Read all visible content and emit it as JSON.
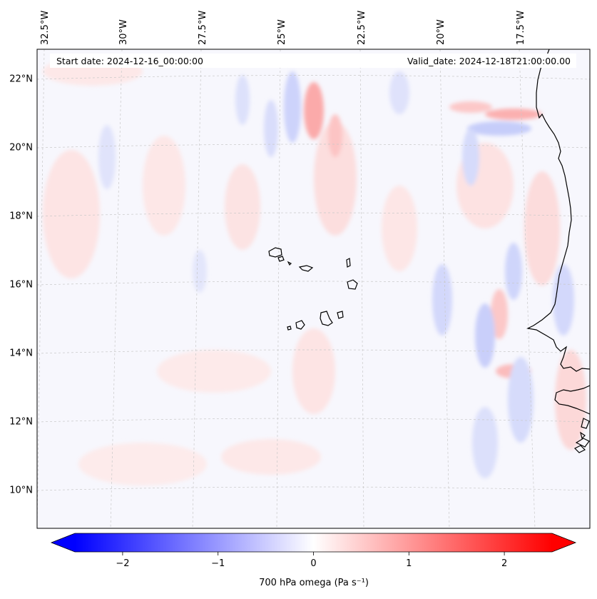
{
  "header": {
    "start_date": "Start date: 2024-12-16_00:00:00",
    "valid_date": "Valid_date: 2024-12-18T21:00:00.00"
  },
  "map": {
    "projection": "lambert-conformal",
    "lon_labels": [
      "32.5°W",
      "30°W",
      "27.5°W",
      "25°W",
      "22.5°W",
      "20°W",
      "17.5°W"
    ],
    "lat_labels": [
      "22°N",
      "20°N",
      "18°N",
      "16°N",
      "14°N",
      "12°N",
      "10°N"
    ],
    "gridlines": true,
    "coastline_color": "#000000",
    "field": "700 hPa omega"
  },
  "colorbar": {
    "label": "700 hPa omega (Pa s⁻¹)",
    "ticks": [
      "−2",
      "−1",
      "0",
      "1",
      "2"
    ],
    "tick_values": [
      -2,
      -1,
      0,
      1,
      2
    ],
    "range": [
      -2.5,
      2.5
    ],
    "colormap": "bwr",
    "extend": "both",
    "low_color": "#0000ff",
    "mid_color": "#ffffff",
    "high_color": "#ff0000"
  }
}
